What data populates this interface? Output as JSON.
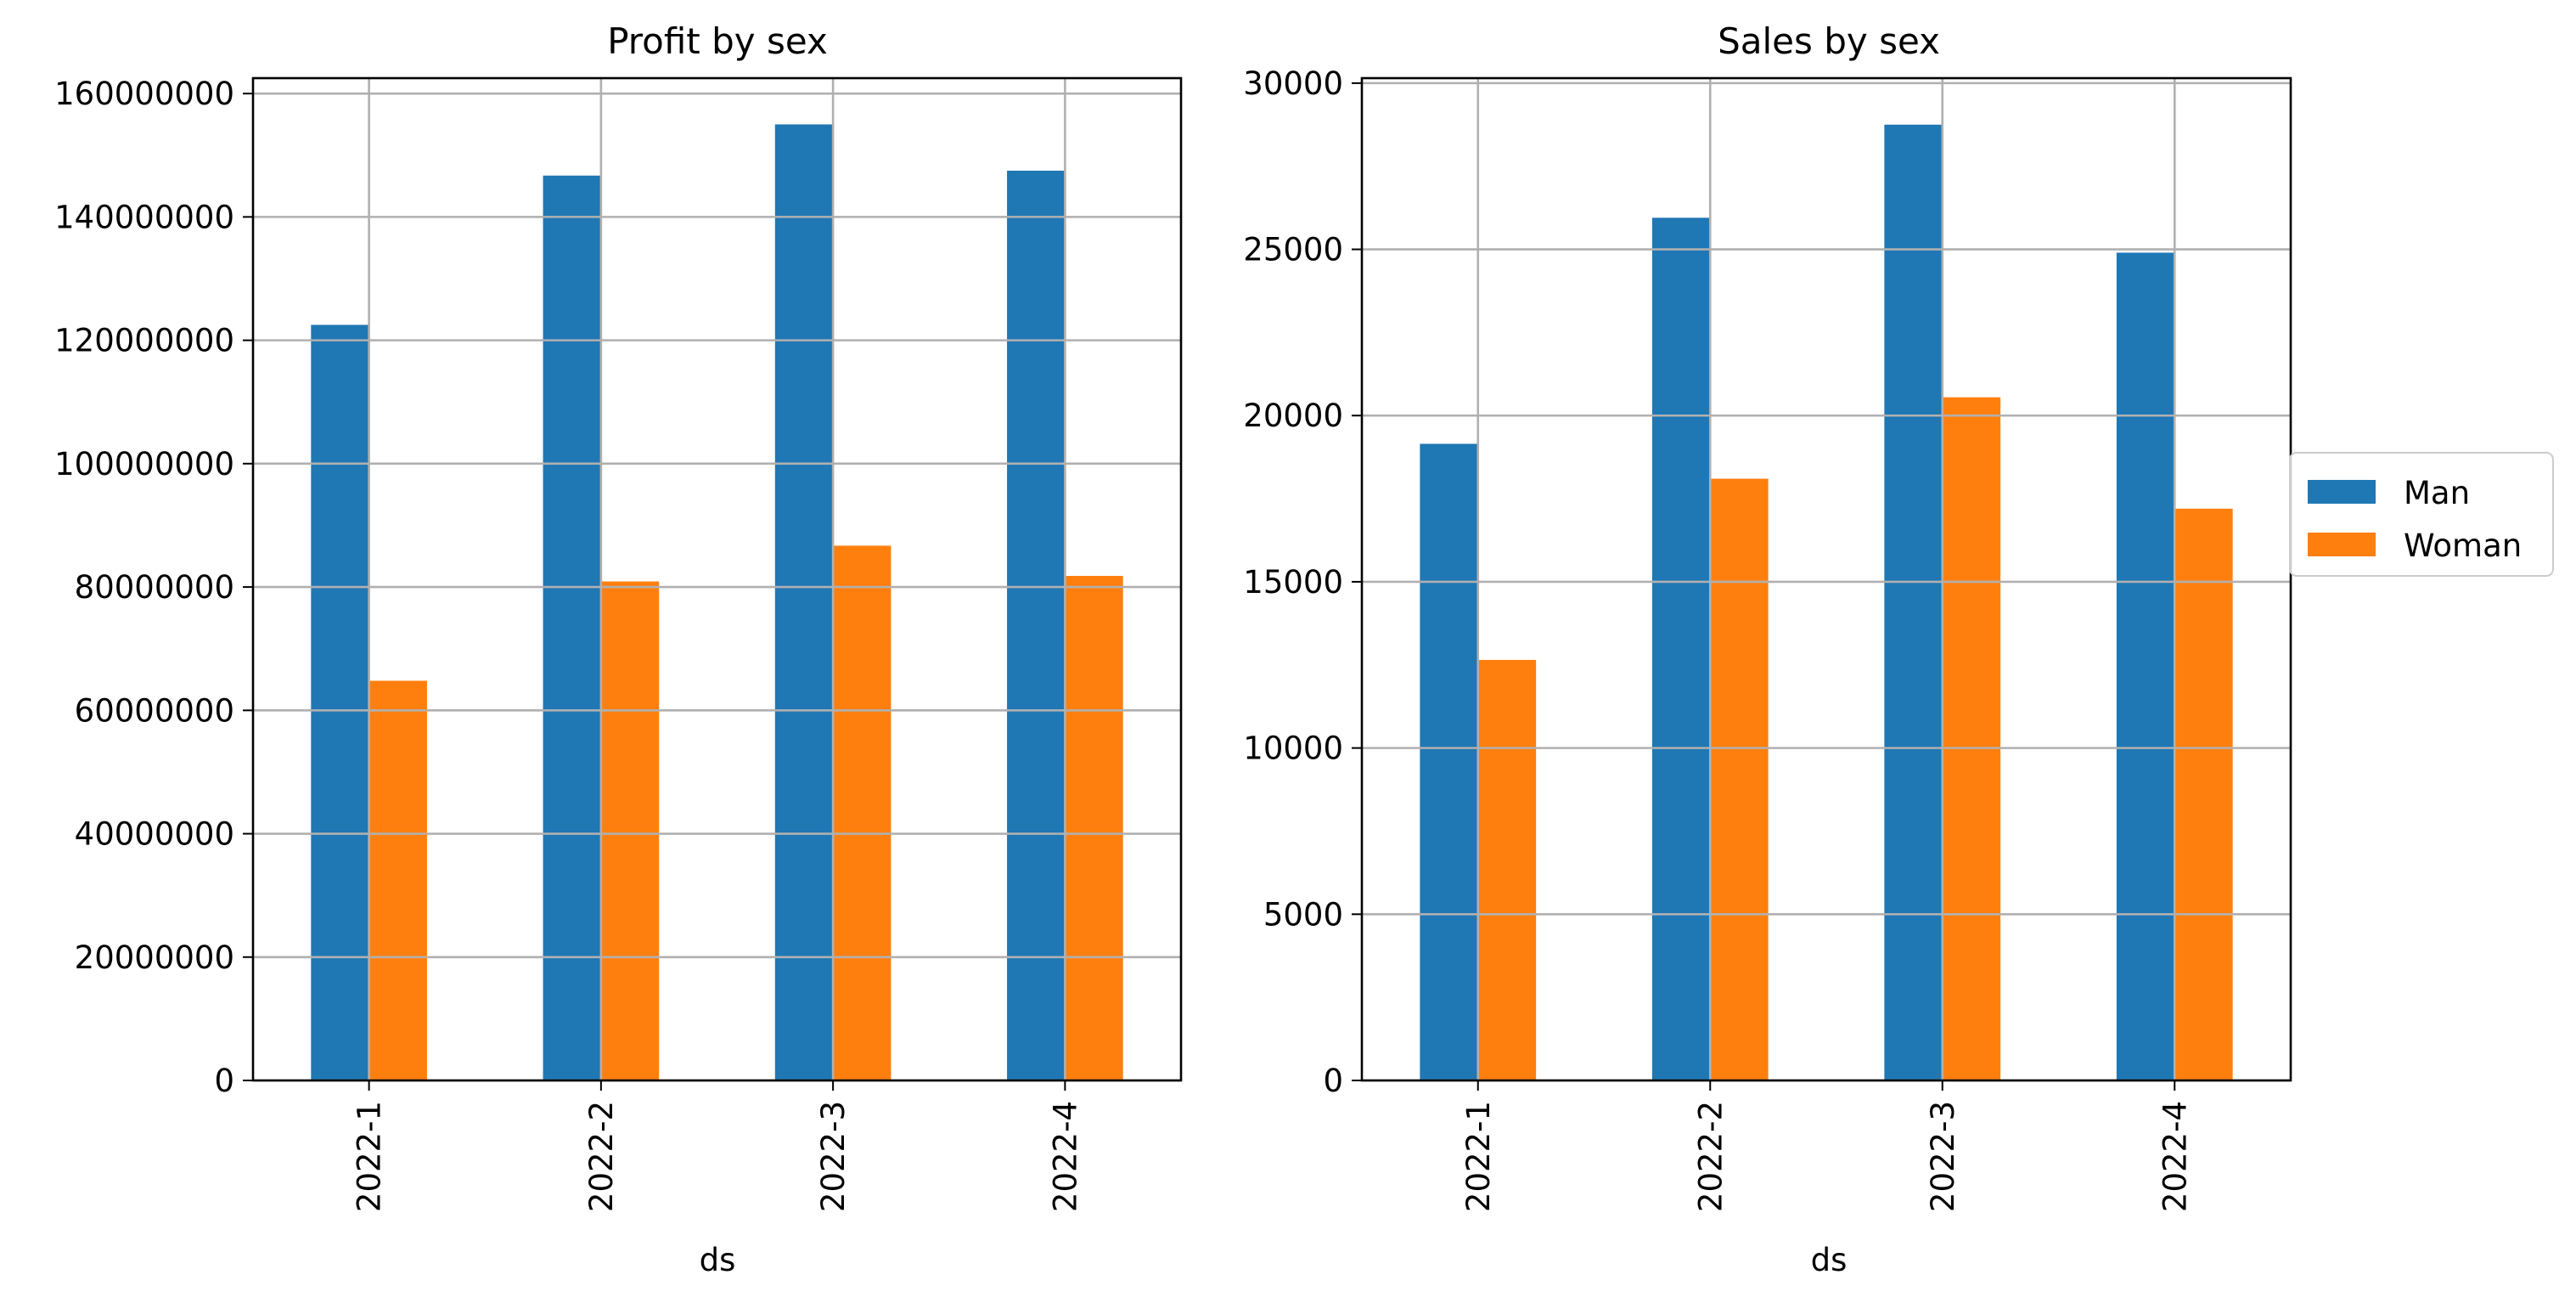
{
  "chart_data": [
    {
      "type": "bar",
      "title": "Profit by sex",
      "xlabel": "ds",
      "ylabel": "",
      "categories": [
        "2022-1",
        "2022-2",
        "2022-3",
        "2022-4"
      ],
      "series": [
        {
          "name": "Man",
          "values": [
            122500000,
            146700000,
            155000000,
            147500000
          ]
        },
        {
          "name": "Woman",
          "values": [
            64800000,
            80900000,
            86700000,
            81800000
          ]
        }
      ],
      "ylim": [
        0,
        162500000
      ],
      "yticks": [
        0,
        20000000,
        40000000,
        60000000,
        80000000,
        100000000,
        120000000,
        140000000,
        160000000
      ],
      "ytick_labels": [
        "0",
        "20000000",
        "40000000",
        "60000000",
        "80000000",
        "100000000",
        "120000000",
        "140000000",
        "160000000"
      ],
      "grid": true,
      "legend": "none"
    },
    {
      "type": "bar",
      "title": "Sales by sex",
      "xlabel": "ds",
      "ylabel": "",
      "categories": [
        "2022-1",
        "2022-2",
        "2022-3",
        "2022-4"
      ],
      "series": [
        {
          "name": "Man",
          "values": [
            19150,
            25950,
            28750,
            24900
          ]
        },
        {
          "name": "Woman",
          "values": [
            12650,
            18100,
            20550,
            17200
          ]
        }
      ],
      "ylim": [
        0,
        30150
      ],
      "yticks": [
        0,
        5000,
        10000,
        15000,
        20000,
        25000,
        30000
      ],
      "ytick_labels": [
        "0",
        "5000",
        "10000",
        "15000",
        "20000",
        "25000",
        "30000"
      ],
      "grid": true,
      "legend": "outside-right"
    }
  ],
  "colors": {
    "Man": "#1f77b4",
    "Woman": "#ff7f0e",
    "grid": "#b0b0b0",
    "axis": "#000000"
  },
  "legend": {
    "items": [
      "Man",
      "Woman"
    ]
  }
}
